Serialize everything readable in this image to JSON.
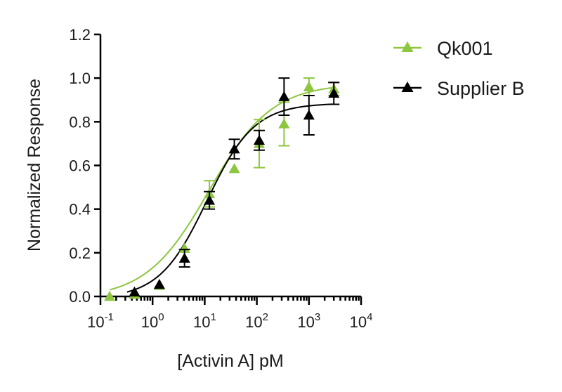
{
  "chart_data": {
    "type": "scatter",
    "title": "",
    "xlabel": "[Activin A] pM",
    "ylabel": "Normalized Response",
    "x_scale": "log10",
    "xlim": [
      0.1,
      10000
    ],
    "ylim": [
      0,
      1.2
    ],
    "x_ticks": [
      {
        "value": 0.1,
        "base": "10",
        "exp": "-1"
      },
      {
        "value": 1,
        "base": "10",
        "exp": "0"
      },
      {
        "value": 10,
        "base": "10",
        "exp": "1"
      },
      {
        "value": 100,
        "base": "10",
        "exp": "2"
      },
      {
        "value": 1000,
        "base": "10",
        "exp": "3"
      },
      {
        "value": 10000,
        "base": "10",
        "exp": "4"
      }
    ],
    "y_ticks": [
      {
        "value": 0,
        "label": "0.0"
      },
      {
        "value": 0.2,
        "label": "0.2"
      },
      {
        "value": 0.4,
        "label": "0.4"
      },
      {
        "value": 0.6,
        "label": "0.6"
      },
      {
        "value": 0.8,
        "label": "0.8"
      },
      {
        "value": 1.0,
        "label": "1.0"
      },
      {
        "value": 1.2,
        "label": "1.2"
      }
    ],
    "grid": false,
    "legend_position": "top-right, outside plot",
    "series": [
      {
        "name": "Qk001",
        "color": "#8dc63f",
        "marker": "triangle-up",
        "x": [
          0.15,
          0.45,
          1.35,
          4.1,
          12.3,
          37,
          111,
          333,
          1000,
          3000
        ],
        "y": [
          0.0,
          0.01,
          0.05,
          0.22,
          0.47,
          0.585,
          0.7,
          0.79,
          0.96,
          0.95
        ],
        "error": [
          0,
          0,
          0,
          0,
          0.06,
          0,
          0.11,
          0.1,
          0.04,
          0.03
        ],
        "fit": {
          "bottom": -0.01,
          "top": 0.975,
          "ec50": 12,
          "hill": 0.72
        }
      },
      {
        "name": "Supplier B",
        "color": "#000000",
        "marker": "triangle-up",
        "x": [
          0.45,
          1.35,
          4.1,
          12.3,
          37,
          111,
          333,
          1000,
          3000
        ],
        "y": [
          0.02,
          0.055,
          0.175,
          0.44,
          0.675,
          0.715,
          0.915,
          0.83,
          0.93
        ],
        "error": [
          0,
          0,
          0.04,
          0.04,
          0.045,
          0.045,
          0.085,
          0.09,
          0.05
        ],
        "fit": {
          "bottom": -0.01,
          "top": 0.885,
          "ec50": 11,
          "hill": 0.95
        }
      }
    ]
  }
}
